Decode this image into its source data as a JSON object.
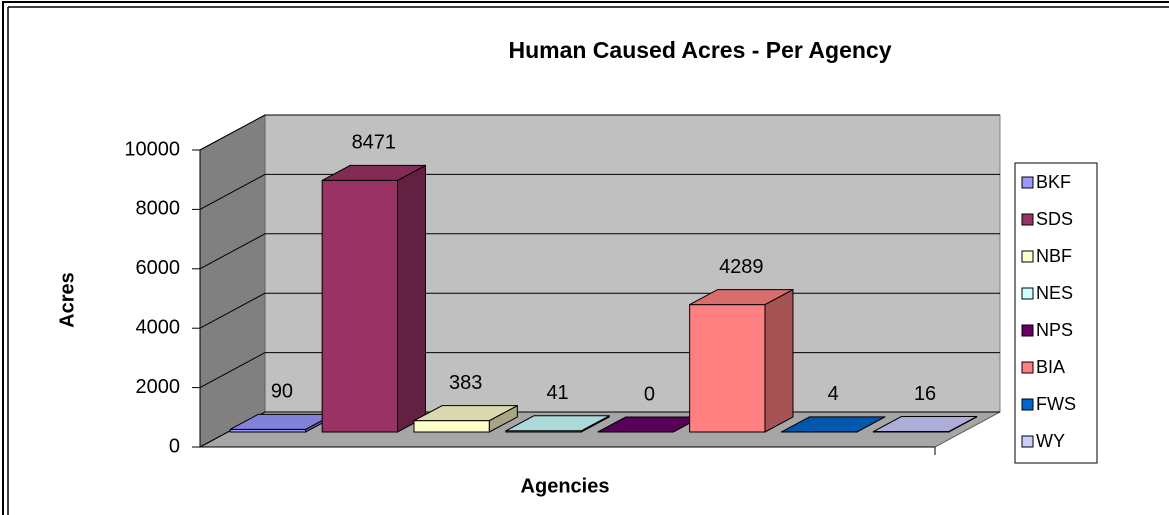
{
  "chart_data": {
    "type": "bar3d",
    "title": "Human Caused Acres - Per Agency",
    "x_label": "Agencies",
    "y_label": "Acres",
    "categories": [
      "BKF",
      "SDS",
      "NBF",
      "NES",
      "NPS",
      "BIA",
      "FWS",
      "WY"
    ],
    "values": [
      90,
      8471,
      383,
      41,
      0,
      4289,
      4,
      16
    ],
    "colors": [
      "#9999ff",
      "#993366",
      "#ffffcc",
      "#ccffff",
      "#660066",
      "#ff8080",
      "#0066cc",
      "#ccccff"
    ],
    "ylim": [
      0,
      10000
    ],
    "yticks": [
      0,
      2000,
      4000,
      6000,
      8000,
      10000
    ],
    "grid": true,
    "legend": "right"
  }
}
